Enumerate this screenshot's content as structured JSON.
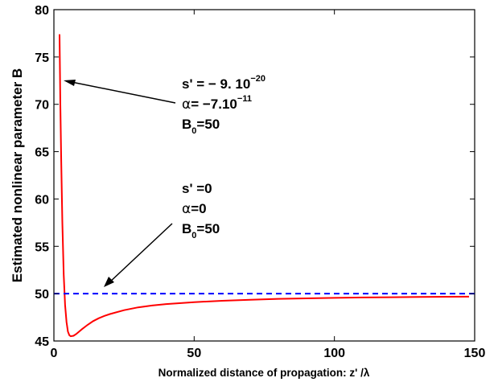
{
  "chart_data": {
    "type": "line",
    "xlabel": "Normalized distance of propagation: z' /λ",
    "ylabel": "Estimated nonlinear parameter B",
    "xlim": [
      0,
      150
    ],
    "ylim": [
      45,
      80
    ],
    "xticks": [
      0,
      50,
      100,
      150
    ],
    "yticks": [
      45,
      50,
      55,
      60,
      65,
      70,
      75,
      80
    ],
    "grid": false,
    "series": [
      {
        "color": "#ff0000",
        "style": "solid",
        "x": [
          2,
          2.3,
          2.6,
          3,
          3.5,
          4,
          4.5,
          5,
          5.5,
          6,
          7,
          8,
          9,
          10,
          12,
          14,
          16,
          18,
          20,
          25,
          30,
          35,
          40,
          50,
          60,
          70,
          80,
          90,
          100,
          110,
          120,
          130,
          140,
          148
        ],
        "y": [
          77.4,
          70,
          64,
          57.5,
          52,
          48.8,
          47,
          46,
          45.6,
          45.5,
          45.55,
          45.75,
          46.0,
          46.25,
          46.7,
          47.1,
          47.4,
          47.65,
          47.85,
          48.25,
          48.55,
          48.75,
          48.9,
          49.1,
          49.25,
          49.35,
          49.45,
          49.5,
          49.55,
          49.6,
          49.62,
          49.65,
          49.67,
          49.68
        ]
      },
      {
        "color": "#0000ff",
        "style": "dashed",
        "x": [
          0,
          150
        ],
        "y": [
          50,
          50
        ]
      }
    ],
    "annotations": [
      {
        "lines": [
          "s' = − 9. 10",
          "−20"
        ],
        "line2_greek": "α",
        "line2_rest": "= −7.10",
        "line2_sup": "−11",
        "line3_main": "B",
        "line3_sub": "0",
        "line3_rest": "=50"
      },
      {
        "line1": "s' =0",
        "line2_greek": "α",
        "line2_rest": "=0",
        "line3_main": "B",
        "line3_sub": "0",
        "line3_rest": "=50"
      }
    ]
  }
}
